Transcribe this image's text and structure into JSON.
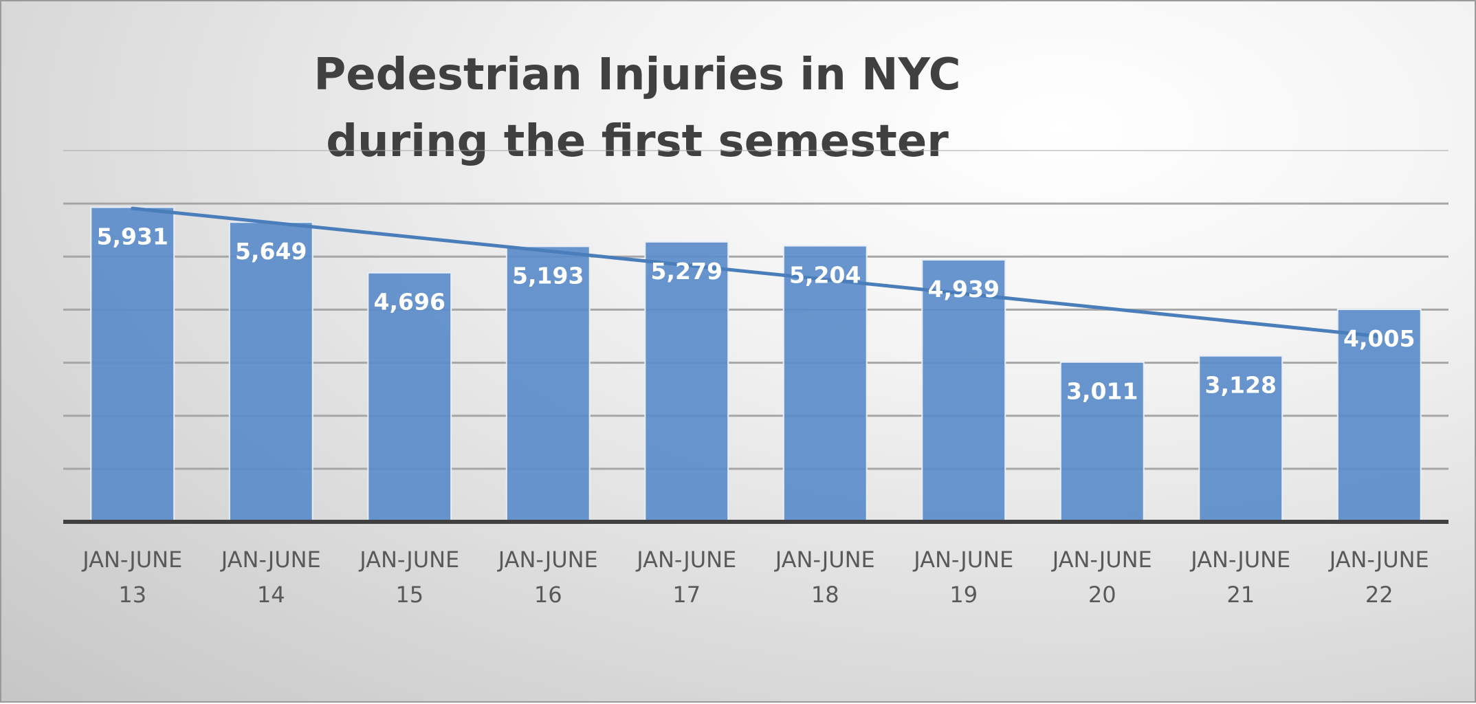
{
  "chart_data": {
    "type": "bar",
    "title": [
      "Pedestrian Injuries in NYC",
      "during the first semester"
    ],
    "categories": [
      [
        "JAN-JUNE",
        "13"
      ],
      [
        "JAN-JUNE",
        "14"
      ],
      [
        "JAN-JUNE",
        "15"
      ],
      [
        "JAN-JUNE",
        "16"
      ],
      [
        "JAN-JUNE",
        "17"
      ],
      [
        "JAN-JUNE",
        "18"
      ],
      [
        "JAN-JUNE",
        "19"
      ],
      [
        "JAN-JUNE",
        "20"
      ],
      [
        "JAN-JUNE",
        "21"
      ],
      [
        "JAN-JUNE",
        "22"
      ]
    ],
    "values": [
      5931,
      5649,
      4696,
      5193,
      5279,
      5204,
      4939,
      3011,
      3128,
      4005
    ],
    "data_labels": [
      "5,931",
      "5,649",
      "4,696",
      "5,193",
      "5,279",
      "5,204",
      "4,939",
      "3,011",
      "3,128",
      "4,005"
    ],
    "ylim": [
      0,
      7000
    ],
    "y_gridline_step": 1000,
    "y_tick_labels_shown": false,
    "grid": true,
    "trendline": {
      "type": "linear",
      "color": "#4a7ebb"
    },
    "colors": {
      "bar": "#5b8cc9",
      "bar_border": "#e8eef7",
      "axis": "#404040",
      "gridline": "#a6a6a6",
      "title": "#404040",
      "tick_label": "#595959",
      "data_label": "#ffffff"
    }
  }
}
